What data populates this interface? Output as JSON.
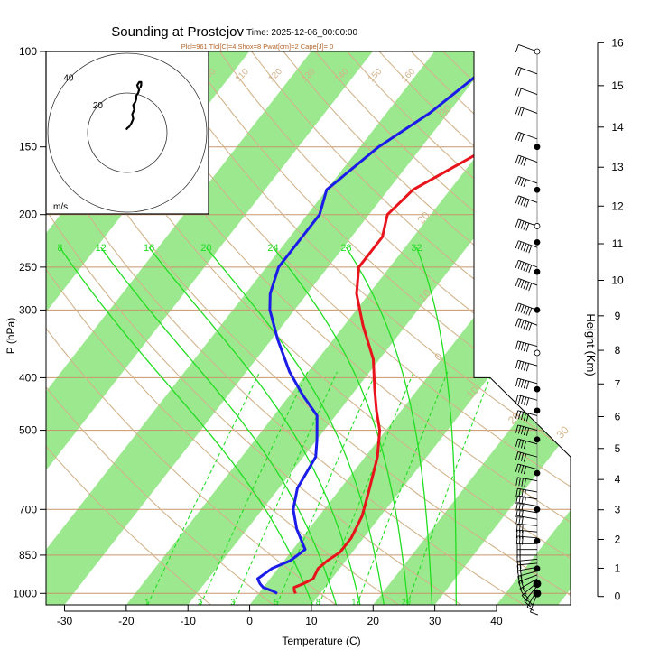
{
  "title": "Sounding at Prostejov",
  "time_label": "Time: 2025-12-06_00:00:00",
  "indices": "Plcl=961 Tlcl[C]=4 Shox=8 Pwat[cm]=2 Cape[J]= 0",
  "colors": {
    "temperature": "#e8141c",
    "dewpoint": "#1c1ce8",
    "isotherm_band": "#9be88e",
    "dry_adiabat": "#d2b48c",
    "moist_adiabat": "#22dd22",
    "mixing_ratio": "#22dd22"
  },
  "chart_data": {
    "type": "line",
    "xlabel": "Temperature (C)",
    "ylabel": "P (hPa)",
    "y2label": "Height (Km)",
    "x_ticks": [
      -30,
      -20,
      -10,
      0,
      10,
      20,
      30,
      40
    ],
    "p_ticks": [
      100,
      150,
      200,
      250,
      300,
      400,
      500,
      700,
      850,
      1000
    ],
    "height_ticks": [
      0,
      1,
      2,
      3,
      4,
      5,
      6,
      7,
      8,
      9,
      10,
      11,
      12,
      13,
      14,
      15,
      16
    ],
    "xlim": [
      -33,
      52
    ],
    "plim": [
      100,
      1050
    ],
    "series": [
      {
        "key": "temperature",
        "points": [
          [
            -10,
            110
          ],
          [
            -14,
            130
          ],
          [
            -19,
            150
          ],
          [
            -26,
            180
          ],
          [
            -27,
            200
          ],
          [
            -25,
            220
          ],
          [
            -25,
            250
          ],
          [
            -22,
            280
          ],
          [
            -17,
            320
          ],
          [
            -11,
            370
          ],
          [
            -7,
            420
          ],
          [
            -4,
            460
          ],
          [
            -1,
            500
          ],
          [
            2,
            560
          ],
          [
            5,
            650
          ],
          [
            7,
            720
          ],
          [
            8,
            790
          ],
          [
            8,
            840
          ],
          [
            7,
            870
          ],
          [
            6.5,
            900
          ],
          [
            7,
            940
          ],
          [
            6,
            960
          ],
          [
            5,
            975
          ],
          [
            5.5,
            990
          ],
          [
            6,
            1000
          ]
        ]
      },
      {
        "key": "dewpoint",
        "points": [
          [
            -30,
            110
          ],
          [
            -33,
            130
          ],
          [
            -37,
            150
          ],
          [
            -40,
            180
          ],
          [
            -38,
            200
          ],
          [
            -38,
            220
          ],
          [
            -38,
            250
          ],
          [
            -36,
            280
          ],
          [
            -34,
            300
          ],
          [
            -29,
            340
          ],
          [
            -23,
            390
          ],
          [
            -18,
            430
          ],
          [
            -13,
            470
          ],
          [
            -10,
            520
          ],
          [
            -8,
            560
          ],
          [
            -7,
            640
          ],
          [
            -5,
            700
          ],
          [
            -2,
            760
          ],
          [
            2,
            830
          ],
          [
            1,
            870
          ],
          [
            -1,
            900
          ],
          [
            -2,
            940
          ],
          [
            -1,
            960
          ],
          [
            0,
            975
          ],
          [
            2,
            990
          ],
          [
            3,
            1000
          ]
        ]
      }
    ],
    "moist_adiabat_labels": [
      "8",
      "12",
      "16",
      "20",
      "24",
      "28",
      "32"
    ],
    "dry_adiabat_labels": [
      "90",
      "100",
      "110",
      "120",
      "130",
      "140",
      "150",
      "160"
    ],
    "isotherm_labels": [
      "30",
      "20",
      "10",
      "0",
      "10",
      "20",
      "30"
    ],
    "mixing_ratio_labels": [
      "1",
      "2",
      "3",
      "5",
      "8",
      "12",
      "20"
    ],
    "hodograph": {
      "unit": "m/s",
      "rings": [
        20,
        40
      ],
      "ring_labels": [
        "20",
        "40"
      ],
      "points": [
        [
          -1,
          2
        ],
        [
          0,
          3
        ],
        [
          2,
          4
        ],
        [
          4,
          6
        ],
        [
          6,
          9
        ],
        [
          5,
          12
        ],
        [
          7,
          15
        ],
        [
          6,
          18
        ],
        [
          8,
          20
        ],
        [
          9,
          22
        ],
        [
          9,
          24
        ],
        [
          11,
          26
        ],
        [
          12,
          28
        ],
        [
          11,
          29
        ],
        [
          10,
          31
        ],
        [
          12,
          33
        ],
        [
          14,
          33
        ],
        [
          14,
          31
        ],
        [
          13,
          29
        ]
      ]
    },
    "wind_barbs": {
      "pressures": [
        1000,
        985,
        970,
        955,
        940,
        925,
        910,
        895,
        880,
        865,
        850,
        830,
        810,
        790,
        770,
        750,
        730,
        710,
        690,
        670,
        650,
        620,
        590,
        560,
        530,
        500,
        470,
        440,
        410,
        380,
        350,
        320,
        300,
        270,
        250,
        230,
        210,
        190,
        175,
        160,
        145,
        130,
        120,
        110,
        100
      ],
      "speeds_kt": [
        10,
        15,
        20,
        20,
        25,
        25,
        25,
        20,
        20,
        20,
        20,
        25,
        25,
        30,
        30,
        30,
        35,
        35,
        35,
        40,
        40,
        40,
        45,
        45,
        45,
        50,
        50,
        50,
        55,
        55,
        55,
        60,
        60,
        60,
        60,
        60,
        55,
        50,
        45,
        40,
        35,
        30,
        25,
        20,
        15
      ],
      "dirs_deg": [
        200,
        210,
        220,
        230,
        240,
        250,
        255,
        260,
        265,
        265,
        270,
        270,
        270,
        275,
        275,
        275,
        280,
        280,
        280,
        280,
        280,
        280,
        285,
        285,
        285,
        285,
        285,
        285,
        285,
        285,
        285,
        290,
        290,
        290,
        290,
        290,
        290,
        290,
        290,
        290,
        290,
        290,
        290,
        290,
        290
      ]
    }
  }
}
